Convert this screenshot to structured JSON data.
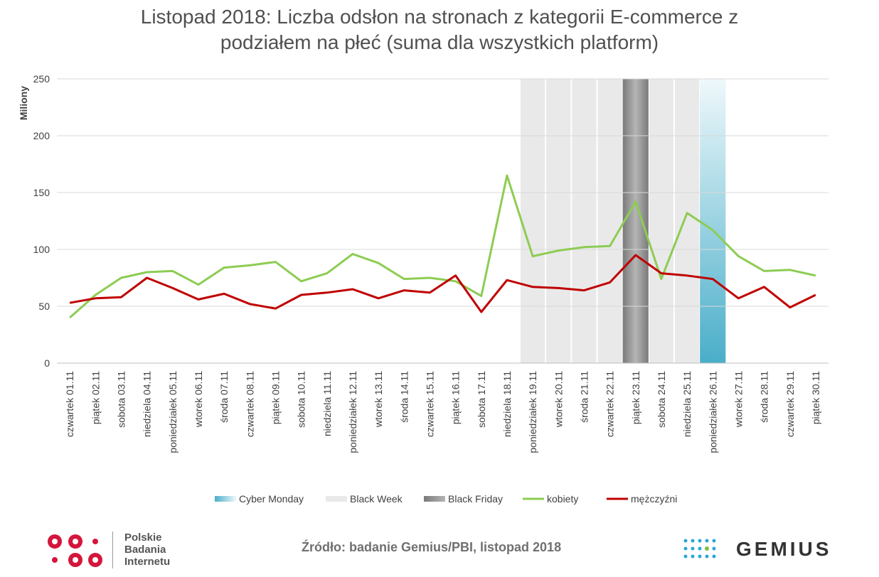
{
  "title_line1": "Listopad 2018: Liczba odsłon na stronach z kategorii E-commerce z",
  "title_line2": "podziałem na płeć (suma dla wszystkich platform)",
  "source": "Źródło: badanie Gemius/PBI, listopad 2018",
  "logos": {
    "pbi": [
      "Polskie",
      "Badania",
      "Internetu"
    ],
    "gemius": "GEMIUS"
  },
  "colors": {
    "kobiety": "#8dcc53",
    "mezczyzni": "#c00000",
    "black_week": "#e9e9e9",
    "black_friday": "#8f8f8f",
    "cyber_monday": "#4aaec9"
  },
  "chart_data": {
    "type": "line",
    "ylabel": "Miliony",
    "ylim": [
      0,
      250
    ],
    "yticks": [
      0,
      50,
      100,
      150,
      200,
      250
    ],
    "grid": true,
    "legend_position": "bottom",
    "categories": [
      "czwartek 01.11",
      "piątek 02.11",
      "sobota 03.11",
      "niedziela 04.11",
      "poniedziałek 05.11",
      "wtorek 06.11",
      "środa 07.11",
      "czwartek 08.11",
      "piątek 09.11",
      "sobota 10.11",
      "niedziela 11.11",
      "poniedziałek 12.11",
      "wtorek 13.11",
      "środa 14.11",
      "czwartek 15.11",
      "piątek 16.11",
      "sobota 17.11",
      "niedziela 18.11",
      "poniedziałek 19.11",
      "wtorek 20.11",
      "środa 21.11",
      "czwartek 22.11",
      "piątek 23.11",
      "sobota 24.11",
      "niedziela 25.11",
      "poniedziałek 26.11",
      "wtorek 27.11",
      "środa 28.11",
      "czwartek 29.11",
      "piątek 30.11"
    ],
    "series": [
      {
        "name": "kobiety",
        "values": [
          40,
          60,
          75,
          80,
          81,
          69,
          84,
          86,
          89,
          72,
          79,
          96,
          88,
          74,
          75,
          72,
          59,
          165,
          94,
          99,
          102,
          103,
          142,
          74,
          132,
          117,
          94,
          81,
          82,
          77
        ]
      },
      {
        "name": "mężczyźni",
        "values": [
          53,
          57,
          58,
          75,
          66,
          56,
          61,
          52,
          48,
          60,
          62,
          65,
          57,
          64,
          62,
          77,
          45,
          73,
          67,
          66,
          64,
          71,
          95,
          79,
          77,
          74,
          57,
          67,
          49,
          60
        ]
      }
    ],
    "bands": [
      {
        "name": "Cyber Monday",
        "from": 25,
        "to": 25
      },
      {
        "name": "Black Week",
        "from": 18,
        "to": 24
      },
      {
        "name": "Black Friday",
        "from": 22,
        "to": 22
      }
    ],
    "legend": [
      "Cyber Monday",
      "Black Week",
      "Black Friday",
      "kobiety",
      "mężczyźni"
    ]
  }
}
